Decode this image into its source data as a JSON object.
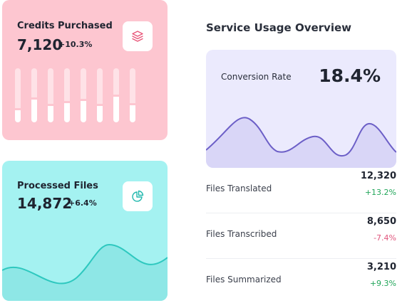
{
  "credits_card": {
    "title": "Credits Purchased",
    "value": "7,120",
    "change": "+10.3%",
    "icon": "layers-icon",
    "bar_levels": [
      0.22,
      0.42,
      0.3,
      0.36,
      0.4,
      0.3,
      0.48,
      0.32
    ],
    "colors": {
      "background": "#fdc6d0",
      "bar": "#ffffff",
      "bar_track": "#fee2e7"
    }
  },
  "files_card": {
    "title": "Processed Files",
    "value": "14,872",
    "change": "+6.4%",
    "icon": "pie-chart-icon",
    "colors": {
      "background": "#a4f2f1",
      "line": "#2ec8bf",
      "fill": "#8ee7e6"
    }
  },
  "usage_panel": {
    "title": "Service Usage Overview",
    "conversion": {
      "label": "Conversion Rate",
      "value": "18.4%",
      "colors": {
        "background": "#ebeafd",
        "line": "#6c5fc7",
        "fill": "#d9d6f7"
      }
    },
    "stats": [
      {
        "label": "Files Translated",
        "value": "12,320",
        "change": "+13.2%",
        "trend": "up"
      },
      {
        "label": "Files Transcribed",
        "value": "8,650",
        "change": "-7.4%",
        "trend": "down"
      },
      {
        "label": "Files Summarized",
        "value": "3,210",
        "change": "+9.3%",
        "trend": "up"
      }
    ],
    "colors": {
      "up": "#22a65a",
      "down": "#e0557c"
    }
  }
}
